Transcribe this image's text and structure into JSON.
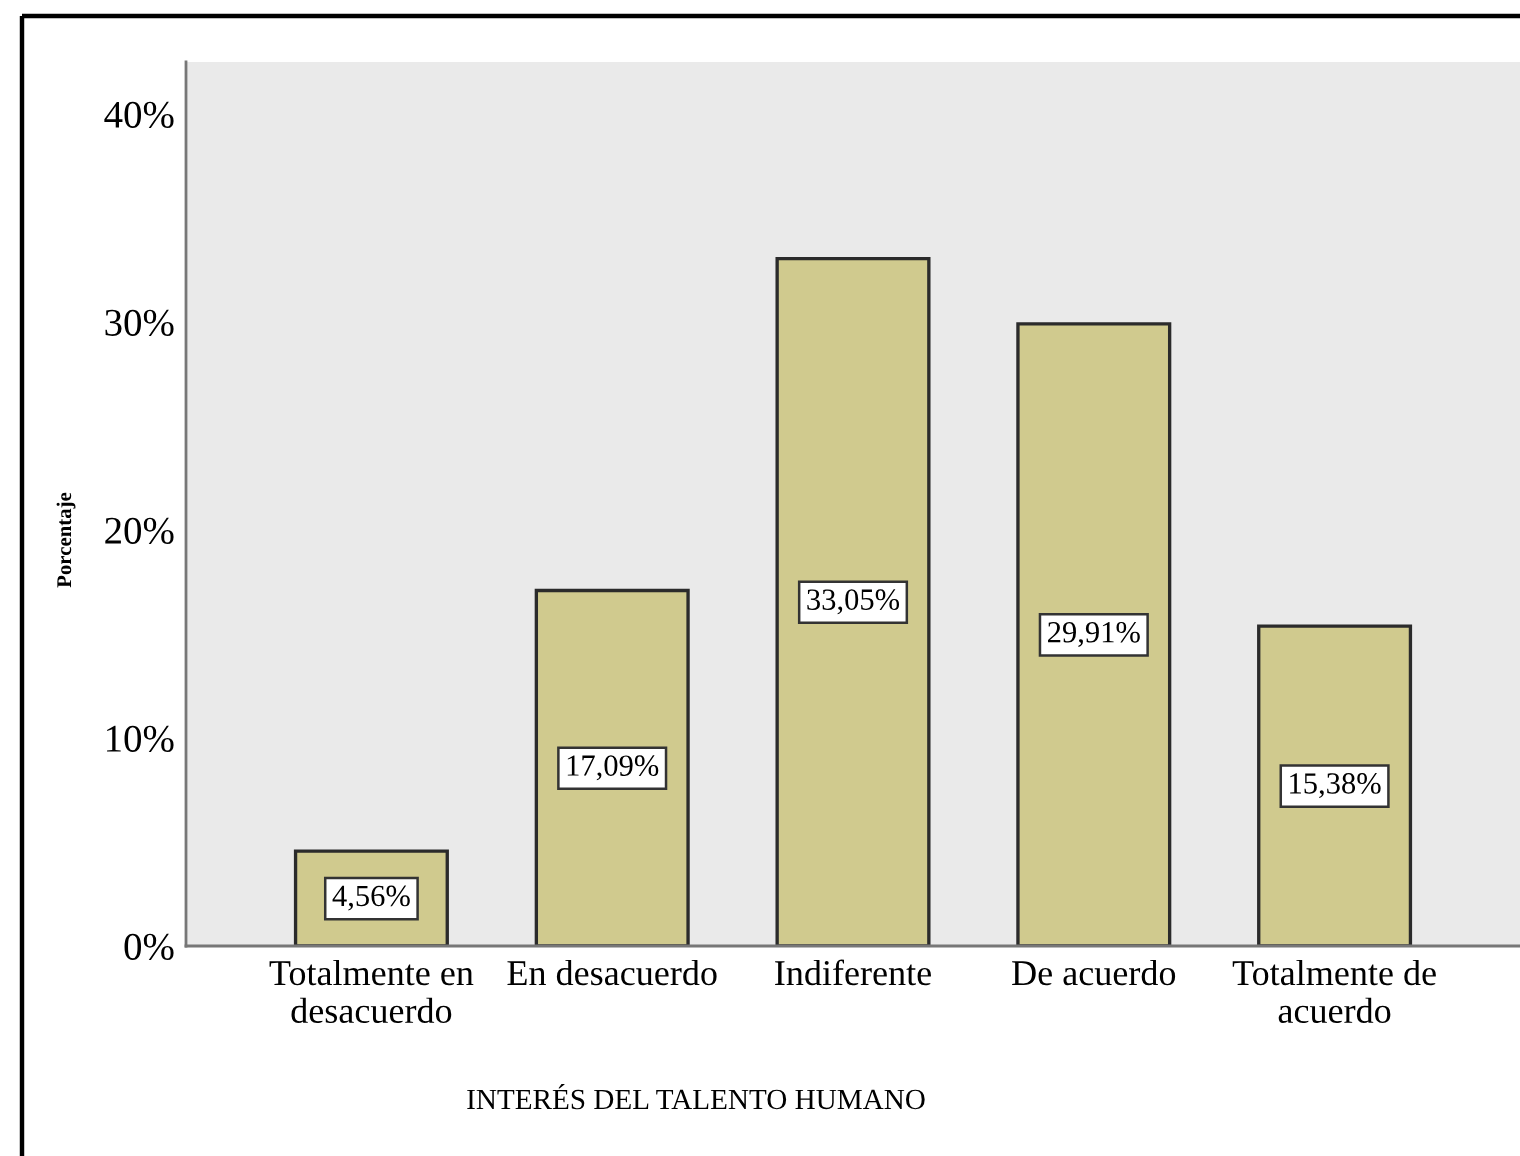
{
  "chart_data": {
    "type": "bar",
    "xlabel": "INTERÉS DEL TALENTO HUMANO",
    "ylabel": "Porcentaje",
    "categories": [
      "Totalmente en\ndesacuerdo",
      "En desacuerdo",
      "Indiferente",
      "De acuerdo",
      "Totalmente de\nacuerdo"
    ],
    "values": [
      4.56,
      17.09,
      33.05,
      29.91,
      15.38
    ],
    "value_labels": [
      "4,56%",
      "17,09%",
      "33,05%",
      "29,91%",
      "15,38%"
    ],
    "color": "#d0ca8e",
    "ylim": [
      0,
      42.5
    ],
    "yticks": [
      {
        "value": 0,
        "label": "0%"
      },
      {
        "value": 10,
        "label": "10%"
      },
      {
        "value": 20,
        "label": "20%"
      },
      {
        "value": 30,
        "label": "30%"
      },
      {
        "value": 40,
        "label": "40%"
      }
    ],
    "grid": false
  }
}
